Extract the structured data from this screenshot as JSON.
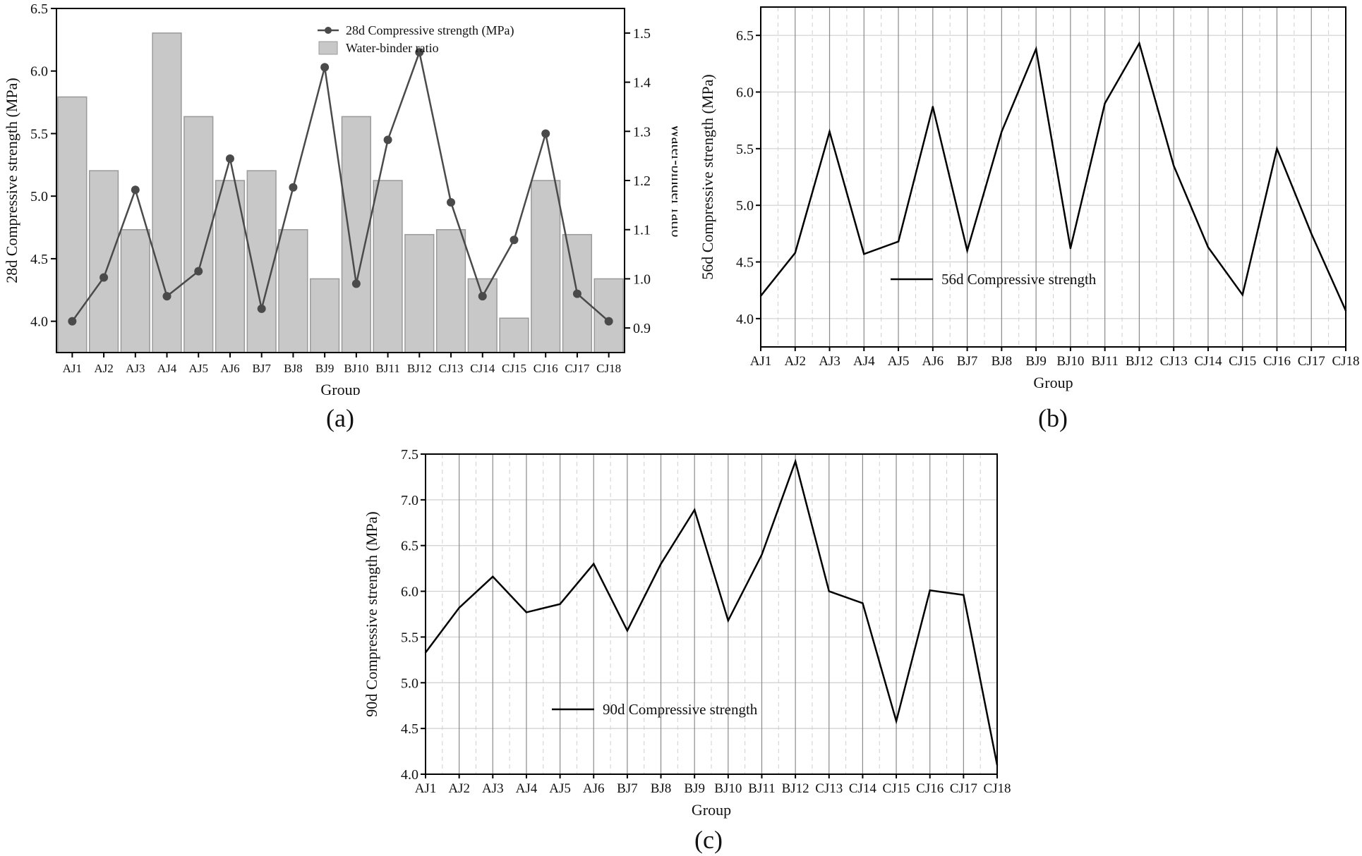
{
  "colors": {
    "bar_fill": "#c8c8c8",
    "bar_stroke": "#9a9a9a",
    "line": "#4a4a4a",
    "axis": "#000000",
    "grid": "#cfcfcf",
    "text": "#111111"
  },
  "panels": {
    "a": {
      "caption": "(a)"
    },
    "b": {
      "caption": "(b)"
    },
    "c": {
      "caption": "(c)"
    }
  },
  "chart_data": [
    {
      "id": "a",
      "type": "bar+line",
      "title": "",
      "xlabel": "Group",
      "ylabel": "28d Compressive strength (MPa)",
      "y2label": "Water-binder ratio",
      "categories": [
        "AJ1",
        "AJ2",
        "AJ3",
        "AJ4",
        "AJ5",
        "AJ6",
        "BJ7",
        "BJ8",
        "BJ9",
        "BJ10",
        "BJ11",
        "BJ12",
        "CJ13",
        "CJ14",
        "CJ15",
        "CJ16",
        "CJ17",
        "CJ18"
      ],
      "ylim": [
        3.75,
        6.5
      ],
      "yticks": [
        "4.0",
        "4.5",
        "5.0",
        "5.5",
        "6.0",
        "6.5"
      ],
      "y2lim": [
        0.85,
        1.55
      ],
      "y2ticks": [
        "0.9",
        "1.0",
        "1.1",
        "1.2",
        "1.3",
        "1.4",
        "1.5"
      ],
      "legend_position": "top-right",
      "series": [
        {
          "name": "28d Compressive strength (MPa)",
          "kind": "line-marker",
          "axis": "left",
          "values": [
            4.0,
            4.35,
            5.05,
            4.2,
            4.4,
            5.3,
            4.1,
            5.07,
            6.03,
            4.3,
            5.45,
            6.15,
            4.95,
            4.2,
            4.65,
            5.5,
            4.22,
            4.0
          ]
        },
        {
          "name": "Water-binder ratio",
          "kind": "bar",
          "axis": "right",
          "values": [
            1.37,
            1.22,
            1.1,
            1.5,
            1.33,
            1.2,
            1.22,
            1.1,
            1.0,
            1.33,
            1.2,
            1.09,
            1.1,
            1.0,
            0.92,
            1.2,
            1.09,
            1.0
          ]
        }
      ]
    },
    {
      "id": "b",
      "type": "line",
      "title": "",
      "xlabel": "Group",
      "ylabel": "56d Compressive strength (MPa)",
      "categories": [
        "AJ1",
        "AJ2",
        "AJ3",
        "AJ4",
        "AJ5",
        "AJ6",
        "BJ7",
        "BJ8",
        "BJ9",
        "BJ10",
        "BJ11",
        "BJ12",
        "CJ13",
        "CJ14",
        "CJ15",
        "CJ16",
        "CJ17",
        "CJ18"
      ],
      "ylim": [
        3.75,
        6.75
      ],
      "yticks": [
        "4.0",
        "4.5",
        "5.0",
        "5.5",
        "6.0",
        "6.5"
      ],
      "grid": true,
      "legend_position": "center-left",
      "series": [
        {
          "name": "56d Compressive strength",
          "values": [
            4.2,
            4.58,
            5.65,
            4.57,
            4.68,
            5.87,
            4.6,
            5.65,
            6.38,
            4.62,
            5.9,
            6.43,
            5.35,
            4.63,
            4.21,
            5.5,
            4.75,
            4.07
          ]
        }
      ]
    },
    {
      "id": "c",
      "type": "line",
      "title": "",
      "xlabel": "Group",
      "ylabel": "90d Compressive strength (MPa)",
      "categories": [
        "AJ1",
        "AJ2",
        "AJ3",
        "AJ4",
        "AJ5",
        "AJ6",
        "BJ7",
        "BJ8",
        "BJ9",
        "BJ10",
        "BJ11",
        "BJ12",
        "CJ13",
        "CJ14",
        "CJ15",
        "CJ16",
        "CJ17",
        "CJ18"
      ],
      "ylim": [
        4.0,
        7.5
      ],
      "yticks": [
        "4.0",
        "4.5",
        "5.0",
        "5.5",
        "6.0",
        "6.5",
        "7.0",
        "7.5"
      ],
      "grid": true,
      "legend_position": "bottom-left",
      "series": [
        {
          "name": "90d Compressive strength",
          "values": [
            5.33,
            5.82,
            6.16,
            5.77,
            5.86,
            6.3,
            5.57,
            6.3,
            6.89,
            5.68,
            6.4,
            7.42,
            6.0,
            5.87,
            4.58,
            6.01,
            5.96,
            4.1
          ]
        }
      ]
    }
  ]
}
